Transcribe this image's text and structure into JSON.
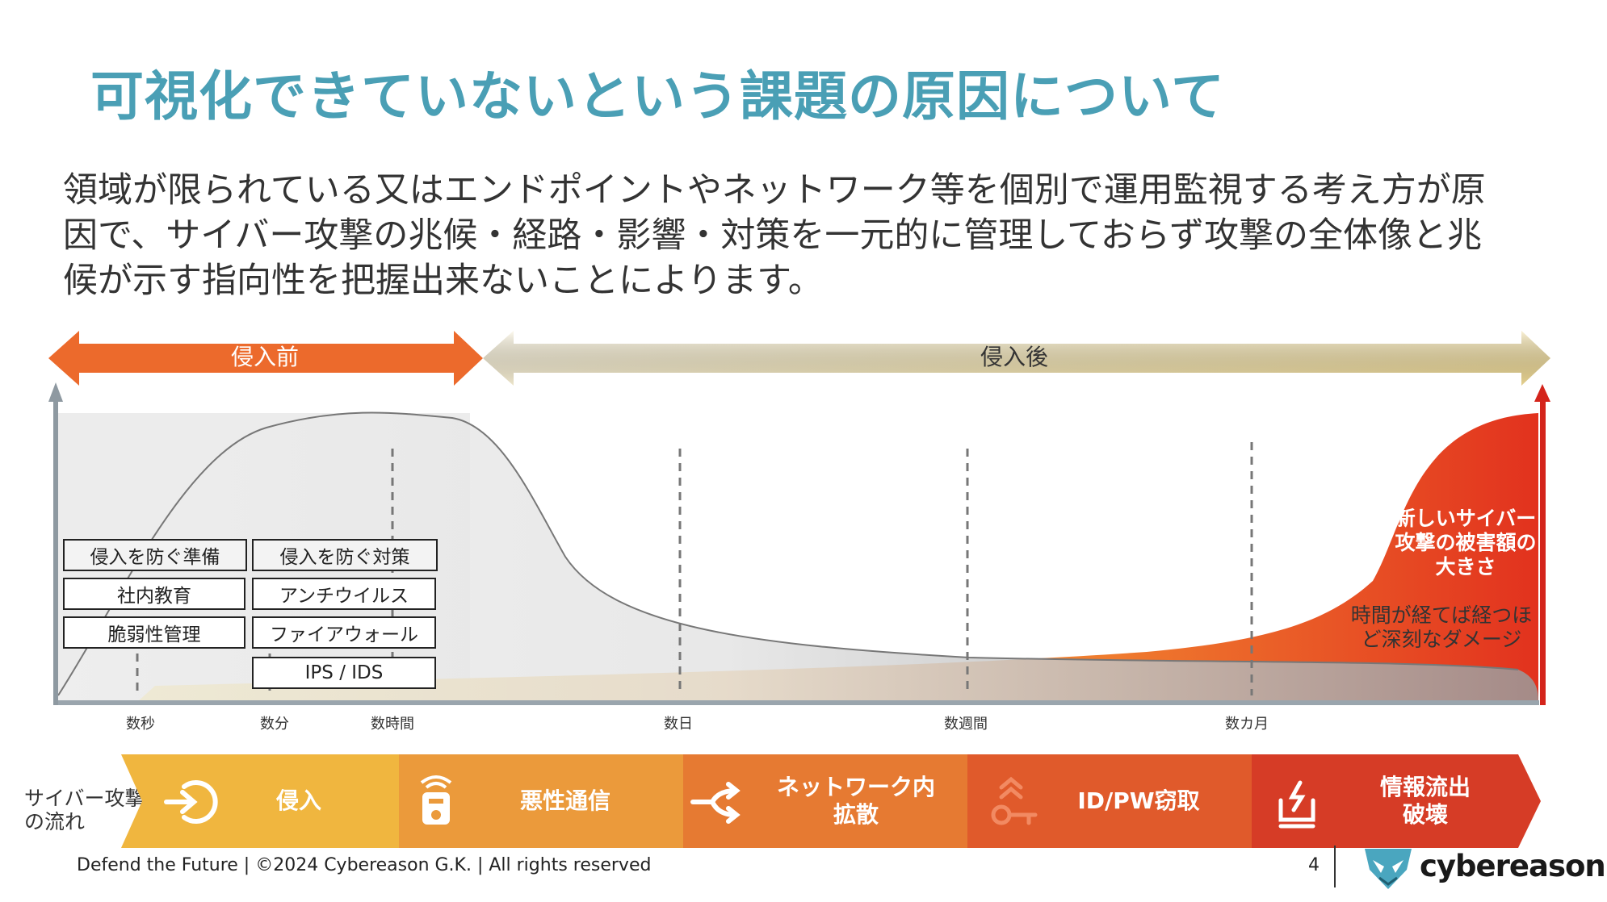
{
  "title": "可視化できていないという課題の原因について",
  "lead": [
    "領域が限られている又はエンドポイントやネットワーク等を個別で運用監視する考え方が原",
    "因で、サイバー攻撃の兆候・経路・影響・対策を一元的に管理しておらず攻撃の全体像と兆",
    "候が示す指向性を把握出来ないことによります。"
  ],
  "phases": {
    "before": "侵入前",
    "after": "侵入後"
  },
  "prevention": {
    "prep_header": "侵入を防ぐ準備",
    "prep_items": [
      "社内教育",
      "脆弱性管理"
    ],
    "measure_header": "侵入を防ぐ対策",
    "measure_items": [
      "アンチウイルス",
      "ファイアウォール",
      "IPS / IDS"
    ]
  },
  "timeline": [
    "数秒",
    "数分",
    "数時間",
    "数日",
    "数週間",
    "数カ月"
  ],
  "annotations": {
    "damage": [
      "新しいサイバー",
      "攻撃の被害額の",
      "大きさ"
    ],
    "time": [
      "時間が経てば経つほ",
      "ど深刻なダメージ"
    ]
  },
  "flow": {
    "label": [
      "サイバー攻撃",
      "の流れ"
    ],
    "stages": [
      {
        "label": [
          "侵入"
        ],
        "icon": "enter-icon",
        "color": "#f0b63f"
      },
      {
        "label": [
          "悪性通信"
        ],
        "icon": "radio-device-icon",
        "color": "#eb9a3b"
      },
      {
        "label": [
          "ネットワーク内",
          "拡散"
        ],
        "icon": "spread-arrows-icon",
        "color": "#e67a32"
      },
      {
        "label": [
          "ID/PW窃取"
        ],
        "icon": "key-icon",
        "color": "#e05a2b"
      },
      {
        "label": [
          "情報流出",
          "破壊"
        ],
        "icon": "upload-alert-icon",
        "color": "#d63c26"
      }
    ]
  },
  "footer": {
    "text": "Defend the Future | ©2024 Cybereason G.K. | All rights reserved",
    "page": "4",
    "brand": "cybereason"
  },
  "colors": {
    "title": "#4a9fb5",
    "before_arrow": "#ec6a2c",
    "after_arrow": "#f2e2a8",
    "damage_red": "#e02a1d"
  }
}
